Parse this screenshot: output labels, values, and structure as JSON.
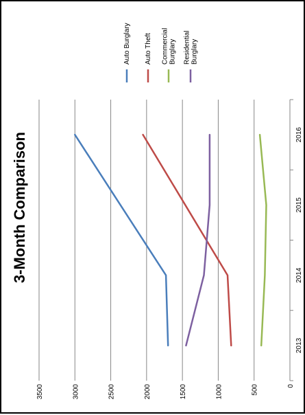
{
  "chart_data": {
    "type": "line",
    "title": "3-Month Comparison",
    "categories": [
      "2013",
      "2014",
      "2015",
      "2016"
    ],
    "yticks": [
      0,
      500,
      1000,
      1500,
      2000,
      2500,
      3000,
      3500
    ],
    "ylim": [
      0,
      3500
    ],
    "grid": true,
    "legend_position": "top",
    "rotation": "90deg-clockwise",
    "series": [
      {
        "name": "Auto Burglary",
        "color": "#4a7ebb",
        "values": [
          1700,
          1730,
          null,
          3000
        ]
      },
      {
        "name": "Auto Theft",
        "color": "#be4b48",
        "values": [
          820,
          870,
          null,
          2050
        ]
      },
      {
        "name": "Commercial Burglary",
        "color": "#98b954",
        "values": [
          400,
          350,
          330,
          420
        ]
      },
      {
        "name": "Residential Burglary",
        "color": "#7d60a0",
        "values": [
          1450,
          1200,
          1120,
          1120
        ]
      }
    ],
    "legend_lines": [
      [
        "Auto Burglary"
      ],
      [
        "Auto Theft"
      ],
      [
        "Commercial",
        "Burglary"
      ],
      [
        "Residential",
        "Burglary"
      ]
    ]
  }
}
